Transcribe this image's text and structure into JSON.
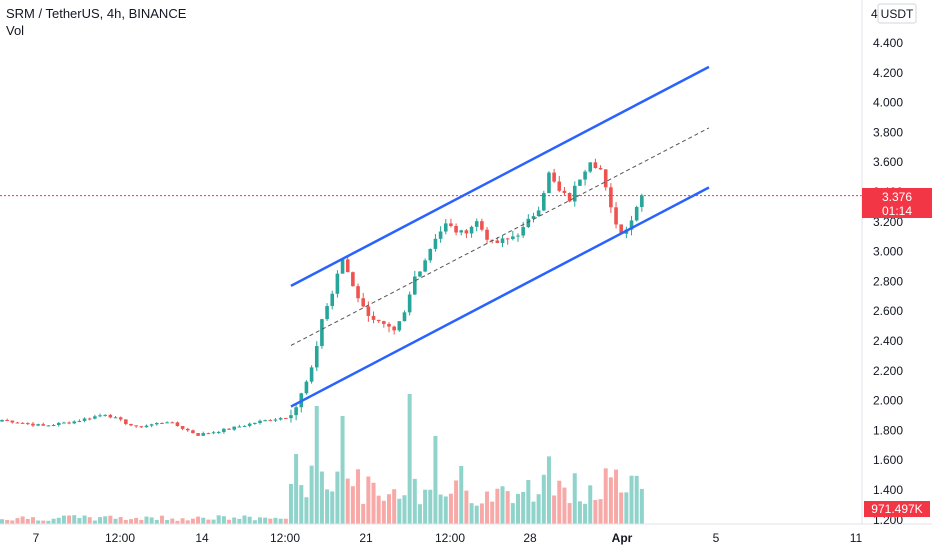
{
  "header": {
    "symbol_line": "SRM / TetherUS, 4h, BINANCE",
    "vol_label": "Vol"
  },
  "price_scale": {
    "currency_label": "USDT",
    "top_partial_tick": "4",
    "ticks": [
      "4.400",
      "4.200",
      "4.000",
      "3.800",
      "3.600",
      "3.400",
      "3.200",
      "3.000",
      "2.800",
      "2.600",
      "2.400",
      "2.200",
      "2.000",
      "1.800",
      "1.600",
      "1.400",
      "1.200"
    ]
  },
  "time_axis": {
    "labels": [
      "7",
      "12:00",
      "14",
      "12:00",
      "21",
      "12:00",
      "28",
      "Apr",
      "5",
      "11"
    ]
  },
  "last_price": {
    "value": "3.376",
    "countdown": "01:14",
    "color": "#f23645"
  },
  "volume_marker": {
    "value": "971.497K"
  },
  "colors": {
    "up": "#26a69a",
    "down": "#ef5350",
    "vol_up": "#8fd3cb",
    "vol_down": "#f7a9a7",
    "channel": "#2962ff",
    "midline": "#555555"
  },
  "chart_data": {
    "type": "candlestick",
    "symbol": "SRM / TetherUS",
    "interval": "4h",
    "exchange": "BINANCE",
    "y_range": [
      1.18,
      4.46
    ],
    "x_labels": [
      "7",
      "12:00",
      "14",
      "12:00",
      "21",
      "12:00",
      "28",
      "Apr",
      "5",
      "11"
    ],
    "volume_series_label": "Vol",
    "close_waypoints": [
      {
        "bar": 0,
        "price": 1.87
      },
      {
        "bar": 8,
        "price": 1.83
      },
      {
        "bar": 14,
        "price": 1.86
      },
      {
        "bar": 20,
        "price": 1.91
      },
      {
        "bar": 26,
        "price": 1.82
      },
      {
        "bar": 32,
        "price": 1.86
      },
      {
        "bar": 38,
        "price": 1.77
      },
      {
        "bar": 44,
        "price": 1.81
      },
      {
        "bar": 50,
        "price": 1.86
      },
      {
        "bar": 55,
        "price": 1.89
      },
      {
        "bar": 57,
        "price": 1.96
      },
      {
        "bar": 60,
        "price": 2.2
      },
      {
        "bar": 62,
        "price": 2.55
      },
      {
        "bar": 64,
        "price": 2.72
      },
      {
        "bar": 66,
        "price": 2.95
      },
      {
        "bar": 68,
        "price": 2.78
      },
      {
        "bar": 70,
        "price": 2.62
      },
      {
        "bar": 73,
        "price": 2.52
      },
      {
        "bar": 76,
        "price": 2.45
      },
      {
        "bar": 78,
        "price": 2.58
      },
      {
        "bar": 80,
        "price": 2.83
      },
      {
        "bar": 82,
        "price": 2.95
      },
      {
        "bar": 84,
        "price": 3.1
      },
      {
        "bar": 86,
        "price": 3.18
      },
      {
        "bar": 89,
        "price": 3.12
      },
      {
        "bar": 92,
        "price": 3.2
      },
      {
        "bar": 95,
        "price": 3.05
      },
      {
        "bar": 98,
        "price": 3.08
      },
      {
        "bar": 101,
        "price": 3.15
      },
      {
        "bar": 104,
        "price": 3.3
      },
      {
        "bar": 106,
        "price": 3.52
      },
      {
        "bar": 108,
        "price": 3.4
      },
      {
        "bar": 110,
        "price": 3.35
      },
      {
        "bar": 112,
        "price": 3.5
      },
      {
        "bar": 114,
        "price": 3.62
      },
      {
        "bar": 116,
        "price": 3.55
      },
      {
        "bar": 118,
        "price": 3.28
      },
      {
        "bar": 120,
        "price": 3.12
      },
      {
        "bar": 122,
        "price": 3.22
      },
      {
        "bar": 124,
        "price": 3.38
      }
    ],
    "channel": {
      "upper": [
        {
          "bar": 56,
          "price": 2.77
        },
        {
          "bar": 137,
          "price": 4.24
        }
      ],
      "lower": [
        {
          "bar": 56,
          "price": 1.96
        },
        {
          "bar": 137,
          "price": 3.43
        }
      ],
      "middle_dashed": [
        {
          "bar": 56,
          "price": 2.37
        },
        {
          "bar": 137,
          "price": 3.83
        }
      ]
    },
    "last_price": 3.376
  }
}
